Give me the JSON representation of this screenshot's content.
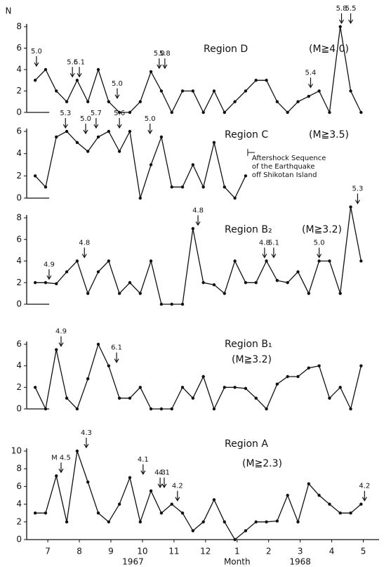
{
  "chart_data": [
    {
      "type": "line",
      "title": "Region D",
      "condition": "(M≧4.0)",
      "ylabel": "N",
      "x": [
        -0.4,
        -0.07,
        0.27,
        0.6,
        0.93,
        1.27,
        1.6,
        1.93,
        2.27,
        2.6,
        2.93,
        3.27,
        3.6,
        3.93,
        4.27,
        4.6,
        4.93,
        5.27,
        5.6,
        5.93,
        6.27,
        6.6,
        6.93,
        7.27,
        7.6,
        7.93,
        8.27,
        8.6,
        8.93,
        9.27,
        9.6,
        9.93
      ],
      "values": [
        3,
        4,
        2,
        1,
        3,
        1,
        4,
        1,
        0,
        0,
        1,
        3.8,
        2,
        0,
        2,
        2,
        0,
        2,
        0,
        1,
        2,
        3,
        3,
        1,
        0,
        1,
        1.5,
        2,
        0,
        8,
        2,
        0
      ],
      "xlim": [
        -0.67,
        10.5
      ],
      "ylim": [
        0,
        8
      ],
      "yticks": [
        0,
        2,
        4,
        6,
        8
      ],
      "annotations": [
        {
          "x": -0.36,
          "text": "5.0"
        },
        {
          "x": 0.78,
          "text": "5.6"
        },
        {
          "x": 1.0,
          "text": "5.1"
        },
        {
          "x": 2.2,
          "text": "5.0"
        },
        {
          "x": 3.53,
          "text": "5.0"
        },
        {
          "x": 3.71,
          "text": "5.8"
        },
        {
          "x": 8.33,
          "text": "5.4"
        },
        {
          "x": 9.31,
          "text": "5.8"
        },
        {
          "x": 9.6,
          "text": "5.5"
        }
      ]
    },
    {
      "type": "line",
      "title": "Region C",
      "condition": "(M≧3.5)",
      "x": [
        -0.4,
        -0.07,
        0.27,
        0.6,
        0.93,
        1.27,
        1.6,
        1.93,
        2.27,
        2.6,
        2.93,
        3.27,
        3.6,
        3.93,
        4.27,
        4.6,
        4.93,
        5.27,
        5.6,
        5.93,
        6.27,
        6.6,
        6.93,
        7.27,
        7.6,
        7.93,
        8.27,
        8.6,
        8.93,
        9.27,
        9.6,
        9.93
      ],
      "values": [
        2,
        1,
        5.5,
        6,
        5,
        4.2,
        5.5,
        6,
        4.2,
        6,
        0,
        3,
        5.5,
        1,
        1,
        3,
        1,
        5,
        1,
        0,
        2,
        null,
        null,
        null,
        null,
        null,
        null,
        null,
        null,
        null,
        null,
        null
      ],
      "xlim": [
        -0.67,
        10.5
      ],
      "ylim": [
        0,
        6
      ],
      "yticks": [
        0,
        2,
        4,
        6
      ],
      "note": [
        "Aftershock Sequence",
        "of the Earthquake",
        "off Shikotan Island"
      ],
      "annotations": [
        {
          "x": 0.56,
          "text": "5.3"
        },
        {
          "x": 1.2,
          "text": "5.0"
        },
        {
          "x": 1.53,
          "text": "5.7"
        },
        {
          "x": 2.27,
          "text": "5.6"
        },
        {
          "x": 3.24,
          "text": "5.0"
        }
      ]
    },
    {
      "type": "line",
      "title": "Region B₂",
      "condition": "(M≧3.2)",
      "x": [
        -0.4,
        -0.07,
        0.27,
        0.6,
        0.93,
        1.27,
        1.6,
        1.93,
        2.27,
        2.6,
        2.93,
        3.27,
        3.6,
        3.93,
        4.27,
        4.6,
        4.93,
        5.27,
        5.6,
        5.93,
        6.27,
        6.6,
        6.93,
        7.27,
        7.6,
        7.93,
        8.27,
        8.6,
        8.93,
        9.27,
        9.6,
        9.93
      ],
      "values": [
        2,
        2,
        1.9,
        3,
        4,
        1,
        3,
        4,
        1,
        2,
        1,
        4,
        0,
        0,
        0,
        7,
        2,
        1.8,
        1,
        4,
        2,
        2,
        4,
        2.2,
        2,
        3,
        1,
        4,
        4,
        1,
        9,
        4
      ],
      "xlim": [
        -0.67,
        10.5
      ],
      "ylim": [
        0,
        8
      ],
      "yticks": [
        0,
        2,
        4,
        6,
        8
      ],
      "annotations": [
        {
          "x": 0.04,
          "text": "4.9"
        },
        {
          "x": 1.16,
          "text": "4.8"
        },
        {
          "x": 4.76,
          "text": "4.8"
        },
        {
          "x": 6.87,
          "text": "4.8"
        },
        {
          "x": 7.16,
          "text": "5.1"
        },
        {
          "x": 8.6,
          "text": "5.0"
        },
        {
          "x": 9.82,
          "text": "5.3"
        }
      ]
    },
    {
      "type": "line",
      "title": "Region B₁",
      "condition": "(M≧3.2)",
      "x": [
        -0.4,
        -0.07,
        0.27,
        0.6,
        0.93,
        1.27,
        1.6,
        1.93,
        2.27,
        2.6,
        2.93,
        3.27,
        3.6,
        3.93,
        4.27,
        4.6,
        4.93,
        5.27,
        5.6,
        5.93,
        6.27,
        6.6,
        6.93,
        7.27,
        7.6,
        7.93,
        8.27,
        8.6,
        8.93,
        9.27,
        9.6,
        9.93
      ],
      "values": [
        2,
        0,
        5.5,
        1,
        0,
        2.8,
        6,
        4,
        1,
        1,
        2,
        0,
        0,
        0,
        2,
        1,
        3,
        0,
        2,
        2,
        1.9,
        1,
        0,
        2.3,
        3,
        3,
        3.8,
        4,
        1,
        2,
        0,
        4
      ],
      "xlim": [
        -0.67,
        10.5
      ],
      "ylim": [
        0,
        6
      ],
      "yticks": [
        0,
        2,
        4,
        6
      ],
      "annotations": [
        {
          "x": 0.42,
          "text": "4.9"
        },
        {
          "x": 2.18,
          "text": "6.1"
        }
      ]
    },
    {
      "type": "line",
      "title": "Region A",
      "condition": "(M≧2.3)",
      "xlabel": "Month",
      "years": [
        "1967",
        "1968"
      ],
      "x": [
        -0.4,
        -0.07,
        0.27,
        0.6,
        0.93,
        1.27,
        1.6,
        1.93,
        2.27,
        2.6,
        2.93,
        3.27,
        3.6,
        3.93,
        4.27,
        4.6,
        4.93,
        5.27,
        5.6,
        5.93,
        6.27,
        6.6,
        6.93,
        7.27,
        7.6,
        7.93,
        8.27,
        8.6,
        8.93,
        9.27,
        9.6,
        9.93
      ],
      "values": [
        3,
        3,
        7.2,
        2,
        10,
        6.5,
        3,
        2,
        4,
        7,
        2,
        5.5,
        3,
        4,
        3,
        1,
        2,
        4.5,
        2,
        0,
        1,
        2,
        2,
        2.1,
        5,
        2,
        6.3,
        5,
        4,
        3,
        3,
        4
      ],
      "xlim": [
        -0.67,
        10.5
      ],
      "ylim": [
        0,
        10
      ],
      "yticks": [
        0,
        2,
        4,
        6,
        8,
        10
      ],
      "xticks": [
        {
          "value": 0,
          "label": "7"
        },
        {
          "value": 1,
          "label": "8"
        },
        {
          "value": 2,
          "label": "9"
        },
        {
          "value": 3,
          "label": "10"
        },
        {
          "value": 4,
          "label": "11"
        },
        {
          "value": 5,
          "label": "12"
        },
        {
          "value": 6,
          "label": "1"
        },
        {
          "value": 7,
          "label": "2"
        },
        {
          "value": 8,
          "label": "3"
        },
        {
          "value": 9,
          "label": "4"
        },
        {
          "value": 10,
          "label": "5"
        }
      ],
      "annotations": [
        {
          "x": 0.42,
          "text": "M 4.5"
        },
        {
          "x": 1.22,
          "text": "4.3"
        },
        {
          "x": 3.02,
          "text": "4.1"
        },
        {
          "x": 3.56,
          "text": "4.3"
        },
        {
          "x": 3.69,
          "text": "4.1"
        },
        {
          "x": 4.11,
          "text": "4.2"
        },
        {
          "x": 10.04,
          "text": "4.2"
        }
      ]
    }
  ]
}
